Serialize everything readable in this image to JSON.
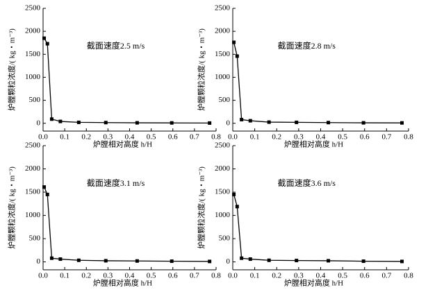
{
  "chart_data": [
    {
      "type": "line",
      "annotation": "截面速度2.5 m/s",
      "x_label": "炉膛相对高度 h/H",
      "y_label": "炉膛颗粒浓度/( kg・m⁻³)",
      "x": [
        0.005,
        0.02,
        0.04,
        0.08,
        0.165,
        0.29,
        0.435,
        0.595,
        0.77
      ],
      "values": [
        1850,
        1730,
        90,
        40,
        20,
        15,
        10,
        8,
        5
      ],
      "color": "#000000",
      "xlim": [
        0,
        0.8
      ],
      "ylim": [
        -170,
        2500
      ],
      "xticks": [
        {
          "value": 0,
          "label": "0.0"
        },
        0.1,
        0.2,
        0.3,
        0.4,
        0.5,
        0.6,
        0.7,
        0.8
      ],
      "yticks": [
        0,
        500,
        1000,
        1500,
        2000,
        2500
      ]
    },
    {
      "type": "line",
      "annotation": "截面速度2.8 m/s",
      "x_label": "炉膛相对高度 h/H",
      "y_label": "炉膛颗粒浓度/( kg・m⁻³)",
      "x": [
        0.005,
        0.02,
        0.04,
        0.08,
        0.165,
        0.29,
        0.435,
        0.595,
        0.77
      ],
      "values": [
        1760,
        1460,
        80,
        55,
        25,
        20,
        15,
        10,
        8
      ],
      "color": "#000000",
      "xlim": [
        0,
        0.8
      ],
      "ylim": [
        -170,
        2500
      ],
      "xticks": [
        {
          "value": 0,
          "label": "0.0"
        },
        0.1,
        0.2,
        0.3,
        0.4,
        0.5,
        0.6,
        0.7,
        0.8
      ],
      "yticks": [
        0,
        500,
        1000,
        1500,
        2000,
        2500
      ]
    },
    {
      "type": "line",
      "annotation": "截面速度3.1 m/s",
      "x_label": "炉膛相对高度 h/H",
      "y_label": "炉膛颗粒浓度/( kg・m⁻³)",
      "x": [
        0.005,
        0.02,
        0.04,
        0.08,
        0.165,
        0.29,
        0.435,
        0.595,
        0.77
      ],
      "values": [
        1610,
        1450,
        80,
        60,
        35,
        25,
        20,
        15,
        10
      ],
      "color": "#000000",
      "xlim": [
        0,
        0.8
      ],
      "ylim": [
        -170,
        2500
      ],
      "xticks": [
        {
          "value": 0,
          "label": "0.0"
        },
        0.1,
        0.2,
        0.3,
        0.4,
        0.5,
        0.6,
        0.7,
        0.8
      ],
      "yticks": [
        0,
        500,
        1000,
        1500,
        2000,
        2500
      ]
    },
    {
      "type": "line",
      "annotation": "截面速度3.6 m/s",
      "x_label": "炉膛相对高度 h/H",
      "y_label": "炉膛颗粒浓度/( kg・m⁻³)",
      "x": [
        0.005,
        0.02,
        0.04,
        0.08,
        0.165,
        0.29,
        0.435,
        0.595,
        0.77
      ],
      "values": [
        1450,
        1190,
        80,
        60,
        35,
        30,
        25,
        15,
        10
      ],
      "color": "#000000",
      "xlim": [
        0,
        0.8
      ],
      "ylim": [
        -170,
        2500
      ],
      "xticks": [
        {
          "value": 0,
          "label": "0.0"
        },
        0.1,
        0.2,
        0.3,
        0.4,
        0.5,
        0.6,
        0.7,
        0.8
      ],
      "yticks": [
        0,
        500,
        1000,
        1500,
        2000,
        2500
      ]
    }
  ]
}
